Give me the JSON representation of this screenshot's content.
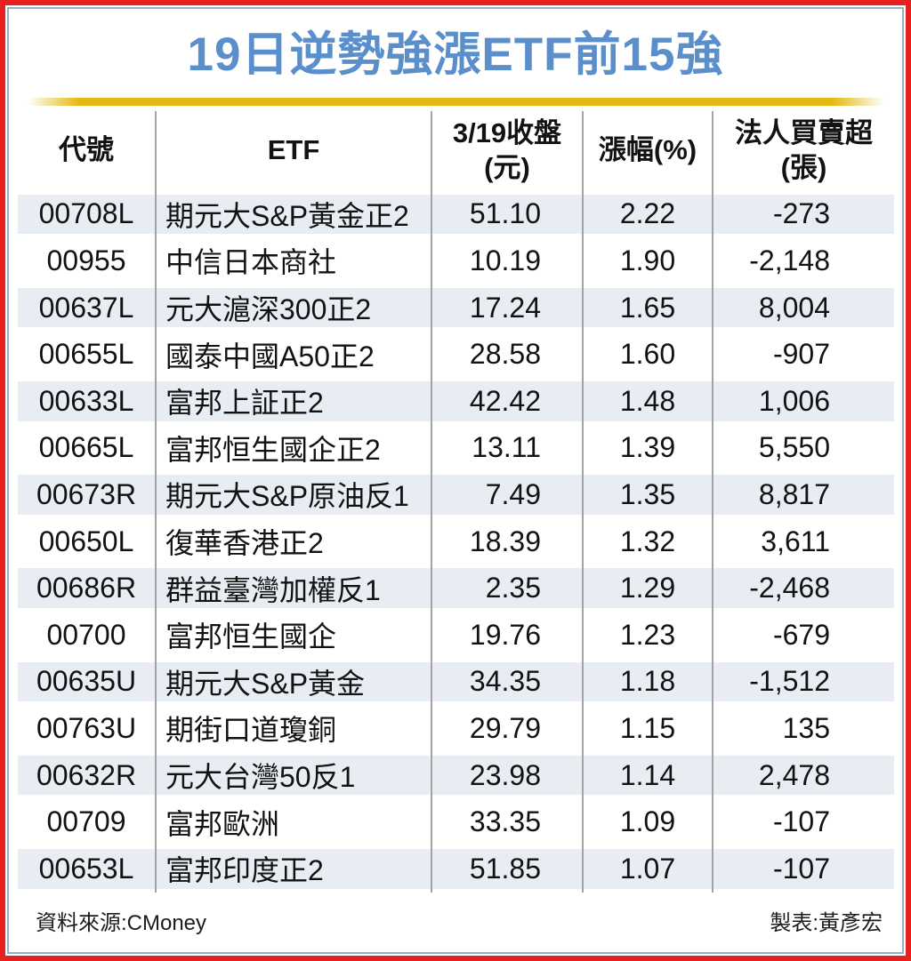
{
  "title": "19日逆勢強漲ETF前15強",
  "colors": {
    "outer_border_red": "#e8201f",
    "inner_border_blue": "#93b1c4",
    "title_blue": "#5a8fcb",
    "gold_rule": "#e3ba12",
    "row_stripe": "#e8edf3",
    "column_separator": "#a3a3a3"
  },
  "footer": {
    "source": "資料來源:CMoney",
    "credit": "製表:黃彥宏"
  },
  "chart_data": {
    "type": "table",
    "title": "19日逆勢強漲ETF前15強",
    "columns": [
      "代號",
      "ETF",
      "3/19收盤\n(元)",
      "漲幅(%)",
      "法人買賣超\n(張)"
    ],
    "rows": [
      {
        "code": "00708L",
        "name": "期元大S&P黃金正2",
        "close": "51.10",
        "change": "2.22",
        "net": "-273"
      },
      {
        "code": "00955",
        "name": "中信日本商社",
        "close": "10.19",
        "change": "1.90",
        "net": "-2,148"
      },
      {
        "code": "00637L",
        "name": "元大滬深300正2",
        "close": "17.24",
        "change": "1.65",
        "net": "8,004"
      },
      {
        "code": "00655L",
        "name": "國泰中國A50正2",
        "close": "28.58",
        "change": "1.60",
        "net": "-907"
      },
      {
        "code": "00633L",
        "name": "富邦上証正2",
        "close": "42.42",
        "change": "1.48",
        "net": "1,006"
      },
      {
        "code": "00665L",
        "name": "富邦恒生國企正2",
        "close": "13.11",
        "change": "1.39",
        "net": "5,550"
      },
      {
        "code": "00673R",
        "name": "期元大S&P原油反1",
        "close": "7.49",
        "change": "1.35",
        "net": "8,817"
      },
      {
        "code": "00650L",
        "name": "復華香港正2",
        "close": "18.39",
        "change": "1.32",
        "net": "3,611"
      },
      {
        "code": "00686R",
        "name": "群益臺灣加權反1",
        "close": "2.35",
        "change": "1.29",
        "net": "-2,468"
      },
      {
        "code": "00700",
        "name": "富邦恒生國企",
        "close": "19.76",
        "change": "1.23",
        "net": "-679"
      },
      {
        "code": "00635U",
        "name": "期元大S&P黃金",
        "close": "34.35",
        "change": "1.18",
        "net": "-1,512"
      },
      {
        "code": "00763U",
        "name": "期街口道瓊銅",
        "close": "29.79",
        "change": "1.15",
        "net": "135"
      },
      {
        "code": "00632R",
        "name": "元大台灣50反1",
        "close": "23.98",
        "change": "1.14",
        "net": "2,478"
      },
      {
        "code": "00709",
        "name": "富邦歐洲",
        "close": "33.35",
        "change": "1.09",
        "net": "-107"
      },
      {
        "code": "00653L",
        "name": "富邦印度正2",
        "close": "51.85",
        "change": "1.07",
        "net": "-107"
      }
    ]
  }
}
